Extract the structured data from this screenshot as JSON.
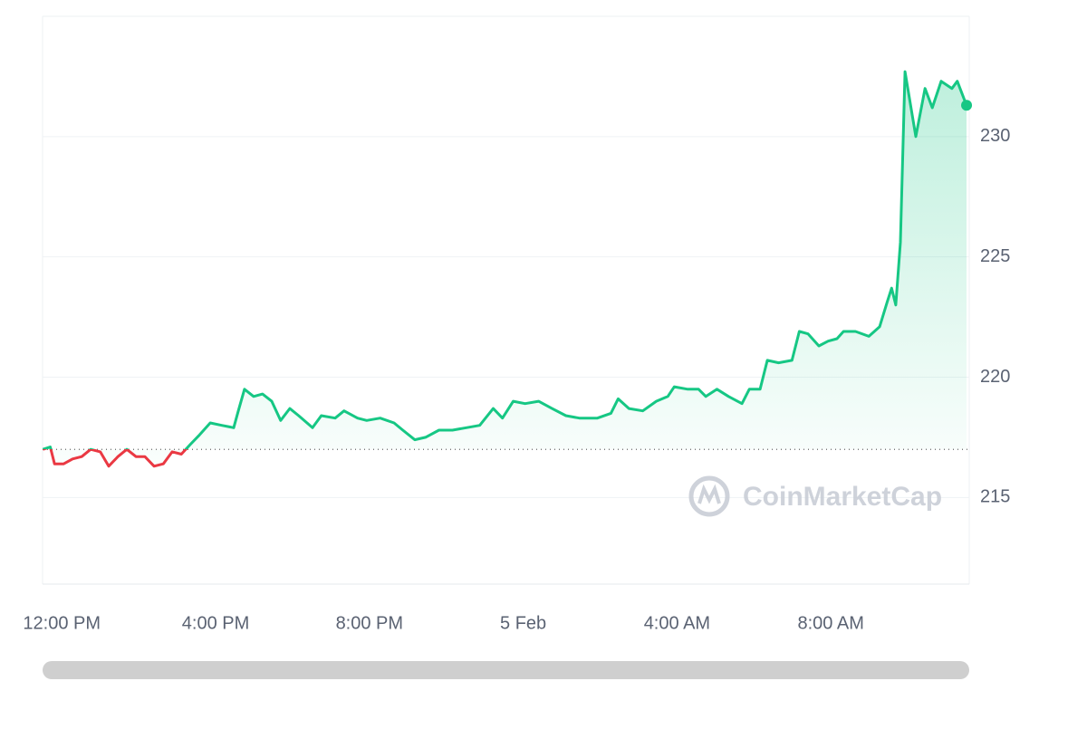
{
  "chart_data": {
    "type": "line",
    "x": [
      -0.49,
      -0.3,
      -0.19,
      0.05,
      0.28,
      0.52,
      0.75,
      1.0,
      1.22,
      1.46,
      1.69,
      1.93,
      2.16,
      2.4,
      2.64,
      2.87,
      3.11,
      3.34,
      3.58,
      3.86,
      4.16,
      4.47,
      4.59,
      4.75,
      4.99,
      5.22,
      5.46,
      5.69,
      5.93,
      6.16,
      6.52,
      6.75,
      7.11,
      7.34,
      7.69,
      7.93,
      8.28,
      8.64,
      8.87,
      9.18,
      9.46,
      9.81,
      10.16,
      10.52,
      10.87,
      11.22,
      11.46,
      11.74,
      12.05,
      12.4,
      12.75,
      13.11,
      13.46,
      13.93,
      14.28,
      14.47,
      14.75,
      15.11,
      15.46,
      15.76,
      15.93,
      16.28,
      16.56,
      16.75,
      17.04,
      17.34,
      17.69,
      17.88,
      18.16,
      18.35,
      18.64,
      18.99,
      19.18,
      19.41,
      19.69,
      19.93,
      20.16,
      20.33,
      20.64,
      20.99,
      21.27,
      21.46,
      21.58,
      21.69,
      21.81,
      21.93,
      22.21,
      22.45,
      22.64,
      22.87,
      23.15,
      23.29,
      23.53
    ],
    "values": [
      217.0,
      217.1,
      216.4,
      216.4,
      216.6,
      216.7,
      217.0,
      216.9,
      216.3,
      216.7,
      217.0,
      216.7,
      216.7,
      216.3,
      216.4,
      216.9,
      216.8,
      217.2,
      217.6,
      218.1,
      218.0,
      217.9,
      218.6,
      219.5,
      219.2,
      219.3,
      219.0,
      218.2,
      218.7,
      218.4,
      217.9,
      218.4,
      218.3,
      218.6,
      218.3,
      218.2,
      218.3,
      218.1,
      217.8,
      217.4,
      217.5,
      217.8,
      217.8,
      217.9,
      218.0,
      218.7,
      218.3,
      219.0,
      218.9,
      219.0,
      218.7,
      218.4,
      218.3,
      218.3,
      218.5,
      219.1,
      218.7,
      218.6,
      219.0,
      219.2,
      219.6,
      219.5,
      219.5,
      219.2,
      219.5,
      219.2,
      218.9,
      219.5,
      219.5,
      220.7,
      220.6,
      220.7,
      221.9,
      221.8,
      221.3,
      221.5,
      221.6,
      221.9,
      221.9,
      221.7,
      222.1,
      223.1,
      223.7,
      223.0,
      225.6,
      232.7,
      230.0,
      232.0,
      231.2,
      232.3,
      232.0,
      232.3,
      231.3
    ],
    "color": "#16c784",
    "negative_color": "#ea3943",
    "baseline": 217.0,
    "xlim": [
      -0.5,
      23.6
    ],
    "xticks": [
      {
        "value": 0,
        "label": "12:00 PM"
      },
      {
        "value": 4,
        "label": "4:00 PM"
      },
      {
        "value": 8,
        "label": "8:00 PM"
      },
      {
        "value": 12,
        "label": "5 Feb"
      },
      {
        "value": 16,
        "label": "4:00 AM"
      },
      {
        "value": 20,
        "label": "8:00 AM"
      }
    ],
    "ylim": [
      211.4,
      235.0
    ],
    "yticks": [
      215,
      220,
      225,
      230
    ],
    "grid": true,
    "watermark": "CoinMarketCap"
  }
}
